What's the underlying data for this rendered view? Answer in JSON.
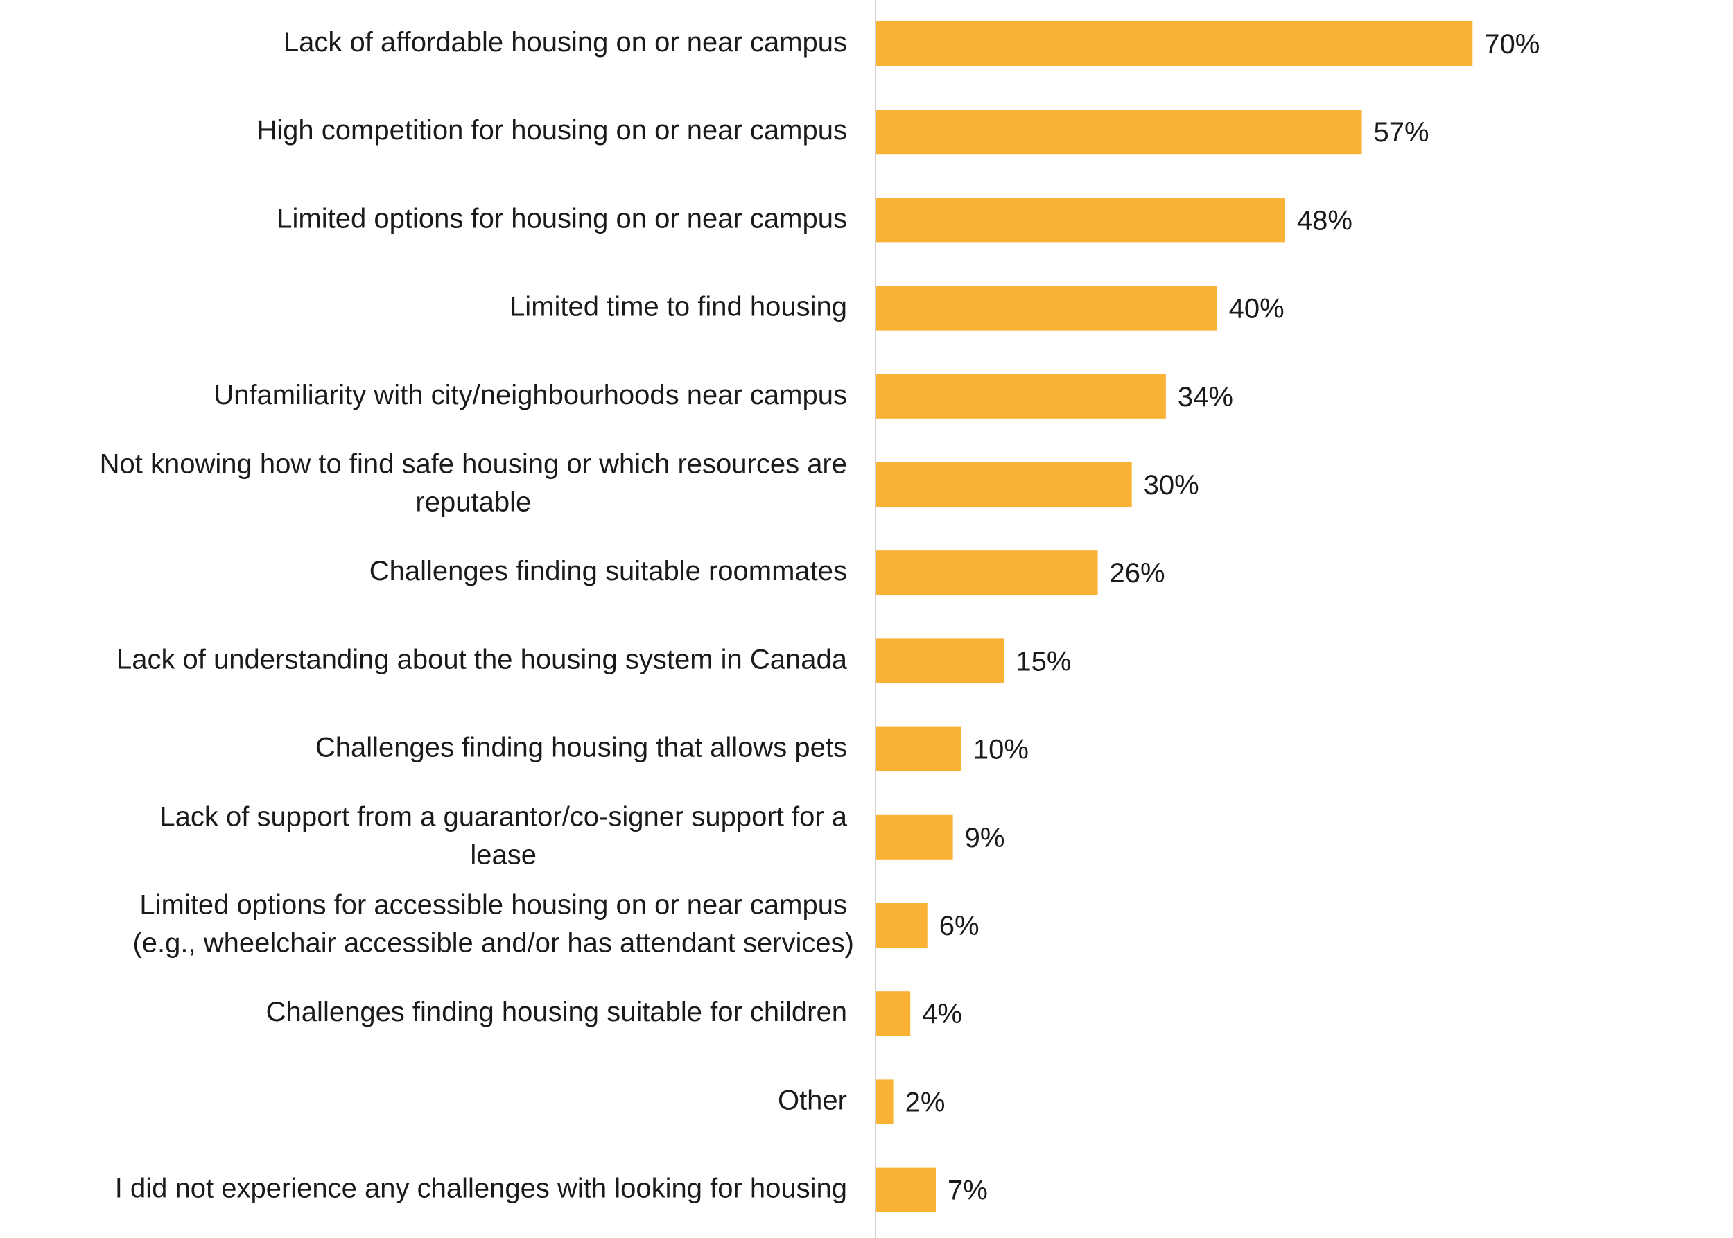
{
  "chart_data": {
    "type": "bar",
    "orientation": "horizontal",
    "categories": [
      [
        "Lack of affordable housing on or near campus"
      ],
      [
        "High competition for housing on or near campus"
      ],
      [
        "Limited options for housing on or near campus"
      ],
      [
        "Limited time to find housing"
      ],
      [
        "Unfamiliarity with city/neighbourhoods near campus"
      ],
      [
        "Not knowing how to find safe housing or which resources are",
        "reputable"
      ],
      [
        "Challenges finding suitable roommates"
      ],
      [
        "Lack of understanding about the housing system in Canada"
      ],
      [
        "Challenges finding housing that allows pets"
      ],
      [
        "Lack of support from a guarantor/co-signer support for a",
        "lease"
      ],
      [
        "Limited options for accessible housing on or near campus",
        "(e.g., wheelchair accessible and/or has attendant services)"
      ],
      [
        "Challenges finding housing suitable for children"
      ],
      [
        "Other"
      ],
      [
        "I did not experience any challenges with looking for housing"
      ]
    ],
    "values": [
      70,
      57,
      48,
      40,
      34,
      30,
      26,
      15,
      10,
      9,
      6,
      4,
      2,
      7
    ],
    "value_labels": [
      "70%",
      "57%",
      "48%",
      "40%",
      "34%",
      "30%",
      "26%",
      "15%",
      "10%",
      "9%",
      "6%",
      "4%",
      "2%",
      "7%"
    ],
    "unit": "%",
    "title": "",
    "xlabel": "",
    "ylabel": "",
    "xlim": [
      0,
      100
    ],
    "grid": false,
    "legend": "none",
    "colors": {
      "bar": "#F9B233",
      "axis": "#d0d0d0",
      "text": "#1a1a1a"
    }
  }
}
